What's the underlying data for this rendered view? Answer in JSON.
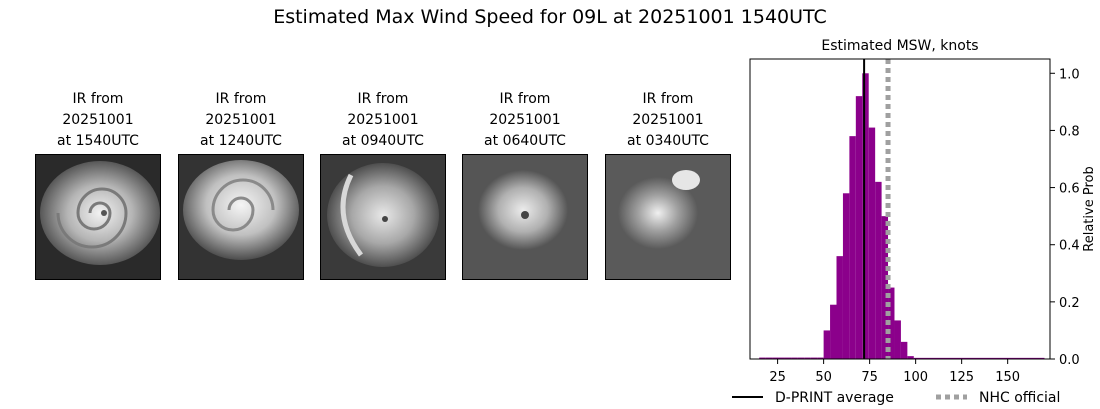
{
  "figure": {
    "title": "Estimated Max Wind Speed for 09L at 20251001 1540UTC"
  },
  "ir_panels": [
    {
      "line1": "IR from",
      "line2": "20251001",
      "line3": "at 1540UTC"
    },
    {
      "line1": "IR from",
      "line2": "20251001",
      "line3": "at 1240UTC"
    },
    {
      "line1": "IR from",
      "line2": "20251001",
      "line3": "at 0940UTC"
    },
    {
      "line1": "IR from",
      "line2": "20251001",
      "line3": "at 0640UTC"
    },
    {
      "line1": "IR from",
      "line2": "20251001",
      "line3": "at 0340UTC"
    }
  ],
  "chart_data": {
    "type": "bar",
    "title": "Estimated MSW, knots",
    "xlabel": "",
    "ylabel": "Relative Prob",
    "xlim": [
      10,
      173
    ],
    "ylim": [
      0,
      1.05
    ],
    "x_ticks": [
      25,
      50,
      75,
      100,
      125,
      150
    ],
    "y_ticks": [
      0.0,
      0.2,
      0.4,
      0.6,
      0.8,
      1.0
    ],
    "y_tick_labels": [
      "0.0",
      "0.2",
      "0.4",
      "0.6",
      "0.8",
      "1.0"
    ],
    "y_axis_side": "right",
    "bin_width": 3.5,
    "bar_color": "#8b008b",
    "bins": [
      {
        "start": 15,
        "end": 18.5,
        "value": 0.005
      },
      {
        "start": 18.5,
        "end": 22,
        "value": 0.005
      },
      {
        "start": 22,
        "end": 25.5,
        "value": 0.005
      },
      {
        "start": 25.5,
        "end": 29,
        "value": 0.005
      },
      {
        "start": 29,
        "end": 32.5,
        "value": 0.005
      },
      {
        "start": 32.5,
        "end": 36,
        "value": 0.005
      },
      {
        "start": 36,
        "end": 39.5,
        "value": 0.005
      },
      {
        "start": 39.5,
        "end": 43,
        "value": 0.005
      },
      {
        "start": 43,
        "end": 46.5,
        "value": 0.005
      },
      {
        "start": 46.5,
        "end": 50,
        "value": 0.005
      },
      {
        "start": 50,
        "end": 53.5,
        "value": 0.1
      },
      {
        "start": 53.5,
        "end": 57,
        "value": 0.19
      },
      {
        "start": 57,
        "end": 60.5,
        "value": 0.36
      },
      {
        "start": 60.5,
        "end": 64,
        "value": 0.58
      },
      {
        "start": 64,
        "end": 67.5,
        "value": 0.78
      },
      {
        "start": 67.5,
        "end": 71,
        "value": 0.92
      },
      {
        "start": 71,
        "end": 74.5,
        "value": 1.0
      },
      {
        "start": 74.5,
        "end": 78,
        "value": 0.81
      },
      {
        "start": 78,
        "end": 81.5,
        "value": 0.62
      },
      {
        "start": 81.5,
        "end": 85,
        "value": 0.5
      },
      {
        "start": 85,
        "end": 88.5,
        "value": 0.25
      },
      {
        "start": 88.5,
        "end": 92,
        "value": 0.135
      },
      {
        "start": 92,
        "end": 95.5,
        "value": 0.06
      },
      {
        "start": 95.5,
        "end": 99,
        "value": 0.01
      },
      {
        "start": 99,
        "end": 170,
        "value": 0.004
      }
    ],
    "vertical_lines": [
      {
        "name": "D-PRINT average",
        "x": 72,
        "color": "#000000",
        "style": "solid"
      },
      {
        "name": "NHC official",
        "x": 85,
        "color": "#a0a0a0",
        "style": "dotted"
      }
    ],
    "legend": {
      "placement": "bottom-center",
      "entries": [
        {
          "label": "D-PRINT average",
          "color": "#000000",
          "style": "solid"
        },
        {
          "label": "NHC official",
          "color": "#a0a0a0",
          "style": "dotted"
        }
      ]
    }
  }
}
